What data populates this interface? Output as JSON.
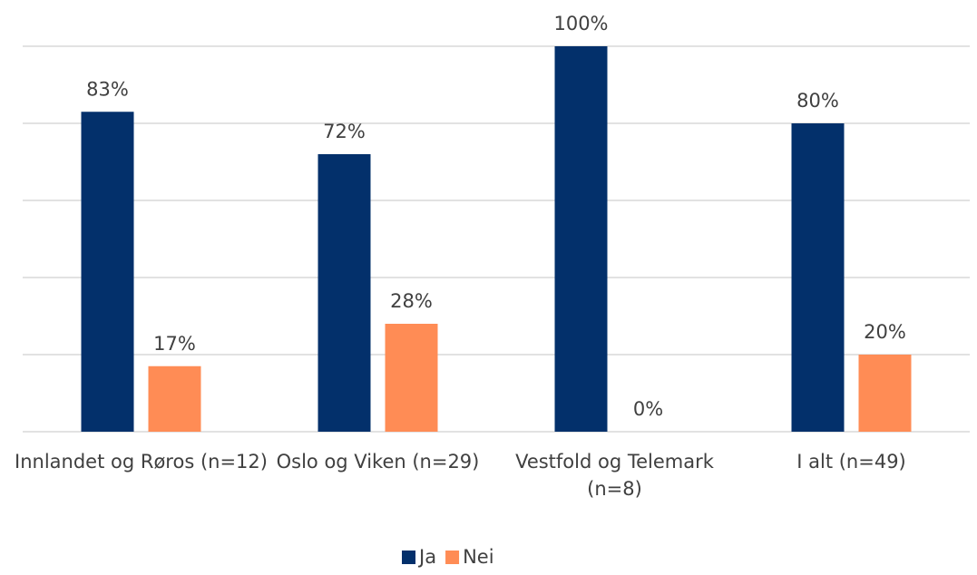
{
  "chart_data": {
    "type": "bar",
    "categories": [
      "Innlandet og Røros (n=12)",
      "Oslo og Viken (n=29)",
      "Vestfold og Telemark (n=8)",
      "I alt (n=49)"
    ],
    "series": [
      {
        "name": "Ja",
        "color": "#03306b",
        "values": [
          83,
          72,
          100,
          80
        ],
        "value_labels": [
          "83%",
          "72%",
          "100%",
          "80%"
        ]
      },
      {
        "name": "Nei",
        "color": "#ff8c55",
        "values": [
          17,
          28,
          0,
          20
        ],
        "value_labels": [
          "17%",
          "28%",
          "0%",
          "20%"
        ]
      }
    ],
    "ylim": [
      0,
      100
    ],
    "yticks": [
      0,
      20,
      40,
      60,
      80,
      100
    ],
    "grid": true,
    "legend": "bottom"
  }
}
